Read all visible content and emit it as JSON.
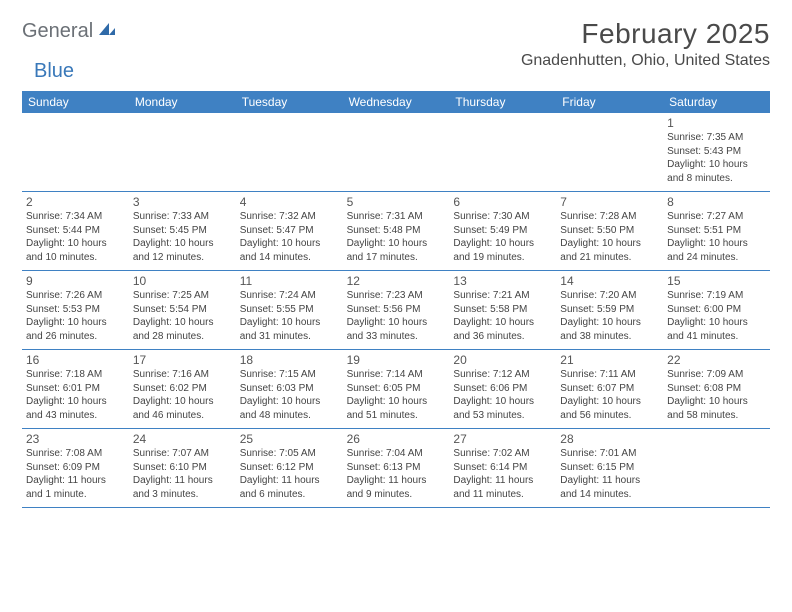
{
  "logo": {
    "general": "General",
    "blue": "Blue"
  },
  "header": {
    "month_title": "February 2025",
    "location": "Gnadenhutten, Ohio, United States"
  },
  "colors": {
    "header_bar": "#3f81c3",
    "header_text": "#ffffff",
    "body_text": "#444444",
    "daynum_text": "#555555",
    "title_text": "#4a4a4a",
    "logo_gray": "#6b7076",
    "logo_blue": "#3978b9",
    "background": "#ffffff",
    "row_border": "#3f81c3"
  },
  "day_names": [
    "Sunday",
    "Monday",
    "Tuesday",
    "Wednesday",
    "Thursday",
    "Friday",
    "Saturday"
  ],
  "weeks": [
    [
      {
        "n": "",
        "sr": "",
        "ss": "",
        "d1": "",
        "d2": ""
      },
      {
        "n": "",
        "sr": "",
        "ss": "",
        "d1": "",
        "d2": ""
      },
      {
        "n": "",
        "sr": "",
        "ss": "",
        "d1": "",
        "d2": ""
      },
      {
        "n": "",
        "sr": "",
        "ss": "",
        "d1": "",
        "d2": ""
      },
      {
        "n": "",
        "sr": "",
        "ss": "",
        "d1": "",
        "d2": ""
      },
      {
        "n": "",
        "sr": "",
        "ss": "",
        "d1": "",
        "d2": ""
      },
      {
        "n": "1",
        "sr": "Sunrise: 7:35 AM",
        "ss": "Sunset: 5:43 PM",
        "d1": "Daylight: 10 hours",
        "d2": "and 8 minutes."
      }
    ],
    [
      {
        "n": "2",
        "sr": "Sunrise: 7:34 AM",
        "ss": "Sunset: 5:44 PM",
        "d1": "Daylight: 10 hours",
        "d2": "and 10 minutes."
      },
      {
        "n": "3",
        "sr": "Sunrise: 7:33 AM",
        "ss": "Sunset: 5:45 PM",
        "d1": "Daylight: 10 hours",
        "d2": "and 12 minutes."
      },
      {
        "n": "4",
        "sr": "Sunrise: 7:32 AM",
        "ss": "Sunset: 5:47 PM",
        "d1": "Daylight: 10 hours",
        "d2": "and 14 minutes."
      },
      {
        "n": "5",
        "sr": "Sunrise: 7:31 AM",
        "ss": "Sunset: 5:48 PM",
        "d1": "Daylight: 10 hours",
        "d2": "and 17 minutes."
      },
      {
        "n": "6",
        "sr": "Sunrise: 7:30 AM",
        "ss": "Sunset: 5:49 PM",
        "d1": "Daylight: 10 hours",
        "d2": "and 19 minutes."
      },
      {
        "n": "7",
        "sr": "Sunrise: 7:28 AM",
        "ss": "Sunset: 5:50 PM",
        "d1": "Daylight: 10 hours",
        "d2": "and 21 minutes."
      },
      {
        "n": "8",
        "sr": "Sunrise: 7:27 AM",
        "ss": "Sunset: 5:51 PM",
        "d1": "Daylight: 10 hours",
        "d2": "and 24 minutes."
      }
    ],
    [
      {
        "n": "9",
        "sr": "Sunrise: 7:26 AM",
        "ss": "Sunset: 5:53 PM",
        "d1": "Daylight: 10 hours",
        "d2": "and 26 minutes."
      },
      {
        "n": "10",
        "sr": "Sunrise: 7:25 AM",
        "ss": "Sunset: 5:54 PM",
        "d1": "Daylight: 10 hours",
        "d2": "and 28 minutes."
      },
      {
        "n": "11",
        "sr": "Sunrise: 7:24 AM",
        "ss": "Sunset: 5:55 PM",
        "d1": "Daylight: 10 hours",
        "d2": "and 31 minutes."
      },
      {
        "n": "12",
        "sr": "Sunrise: 7:23 AM",
        "ss": "Sunset: 5:56 PM",
        "d1": "Daylight: 10 hours",
        "d2": "and 33 minutes."
      },
      {
        "n": "13",
        "sr": "Sunrise: 7:21 AM",
        "ss": "Sunset: 5:58 PM",
        "d1": "Daylight: 10 hours",
        "d2": "and 36 minutes."
      },
      {
        "n": "14",
        "sr": "Sunrise: 7:20 AM",
        "ss": "Sunset: 5:59 PM",
        "d1": "Daylight: 10 hours",
        "d2": "and 38 minutes."
      },
      {
        "n": "15",
        "sr": "Sunrise: 7:19 AM",
        "ss": "Sunset: 6:00 PM",
        "d1": "Daylight: 10 hours",
        "d2": "and 41 minutes."
      }
    ],
    [
      {
        "n": "16",
        "sr": "Sunrise: 7:18 AM",
        "ss": "Sunset: 6:01 PM",
        "d1": "Daylight: 10 hours",
        "d2": "and 43 minutes."
      },
      {
        "n": "17",
        "sr": "Sunrise: 7:16 AM",
        "ss": "Sunset: 6:02 PM",
        "d1": "Daylight: 10 hours",
        "d2": "and 46 minutes."
      },
      {
        "n": "18",
        "sr": "Sunrise: 7:15 AM",
        "ss": "Sunset: 6:03 PM",
        "d1": "Daylight: 10 hours",
        "d2": "and 48 minutes."
      },
      {
        "n": "19",
        "sr": "Sunrise: 7:14 AM",
        "ss": "Sunset: 6:05 PM",
        "d1": "Daylight: 10 hours",
        "d2": "and 51 minutes."
      },
      {
        "n": "20",
        "sr": "Sunrise: 7:12 AM",
        "ss": "Sunset: 6:06 PM",
        "d1": "Daylight: 10 hours",
        "d2": "and 53 minutes."
      },
      {
        "n": "21",
        "sr": "Sunrise: 7:11 AM",
        "ss": "Sunset: 6:07 PM",
        "d1": "Daylight: 10 hours",
        "d2": "and 56 minutes."
      },
      {
        "n": "22",
        "sr": "Sunrise: 7:09 AM",
        "ss": "Sunset: 6:08 PM",
        "d1": "Daylight: 10 hours",
        "d2": "and 58 minutes."
      }
    ],
    [
      {
        "n": "23",
        "sr": "Sunrise: 7:08 AM",
        "ss": "Sunset: 6:09 PM",
        "d1": "Daylight: 11 hours",
        "d2": "and 1 minute."
      },
      {
        "n": "24",
        "sr": "Sunrise: 7:07 AM",
        "ss": "Sunset: 6:10 PM",
        "d1": "Daylight: 11 hours",
        "d2": "and 3 minutes."
      },
      {
        "n": "25",
        "sr": "Sunrise: 7:05 AM",
        "ss": "Sunset: 6:12 PM",
        "d1": "Daylight: 11 hours",
        "d2": "and 6 minutes."
      },
      {
        "n": "26",
        "sr": "Sunrise: 7:04 AM",
        "ss": "Sunset: 6:13 PM",
        "d1": "Daylight: 11 hours",
        "d2": "and 9 minutes."
      },
      {
        "n": "27",
        "sr": "Sunrise: 7:02 AM",
        "ss": "Sunset: 6:14 PM",
        "d1": "Daylight: 11 hours",
        "d2": "and 11 minutes."
      },
      {
        "n": "28",
        "sr": "Sunrise: 7:01 AM",
        "ss": "Sunset: 6:15 PM",
        "d1": "Daylight: 11 hours",
        "d2": "and 14 minutes."
      },
      {
        "n": "",
        "sr": "",
        "ss": "",
        "d1": "",
        "d2": ""
      }
    ]
  ]
}
